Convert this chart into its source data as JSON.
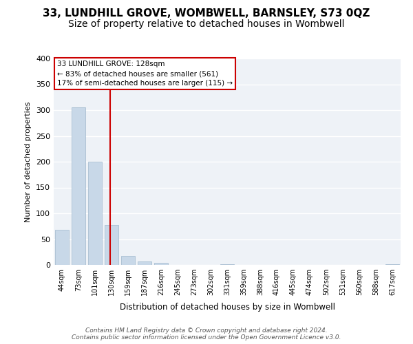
{
  "title1": "33, LUNDHILL GROVE, WOMBWELL, BARNSLEY, S73 0QZ",
  "title2": "Size of property relative to detached houses in Wombwell",
  "xlabel": "Distribution of detached houses by size in Wombwell",
  "ylabel": "Number of detached properties",
  "categories": [
    "44sqm",
    "73sqm",
    "101sqm",
    "130sqm",
    "159sqm",
    "187sqm",
    "216sqm",
    "245sqm",
    "273sqm",
    "302sqm",
    "331sqm",
    "359sqm",
    "388sqm",
    "416sqm",
    "445sqm",
    "474sqm",
    "502sqm",
    "531sqm",
    "560sqm",
    "588sqm",
    "617sqm"
  ],
  "bar_values": [
    68,
    305,
    200,
    78,
    18,
    7,
    4,
    0,
    0,
    0,
    2,
    0,
    0,
    0,
    0,
    0,
    0,
    0,
    0,
    0,
    2
  ],
  "bar_color": "#c8d8e8",
  "bar_edge_color": "#a0b8cc",
  "vline_color": "#cc0000",
  "vline_x": 2.93,
  "annotation_line1": "33 LUNDHILL GROVE: 128sqm",
  "annotation_line2": "← 83% of detached houses are smaller (561)",
  "annotation_line3": "17% of semi-detached houses are larger (115) →",
  "annotation_box_color": "#cc0000",
  "ylim": [
    0,
    400
  ],
  "yticks": [
    0,
    50,
    100,
    150,
    200,
    250,
    300,
    350,
    400
  ],
  "background_color": "#eef2f7",
  "footer_text": "Contains HM Land Registry data © Crown copyright and database right 2024.\nContains public sector information licensed under the Open Government Licence v3.0.",
  "title_fontsize": 11,
  "subtitle_fontsize": 10
}
